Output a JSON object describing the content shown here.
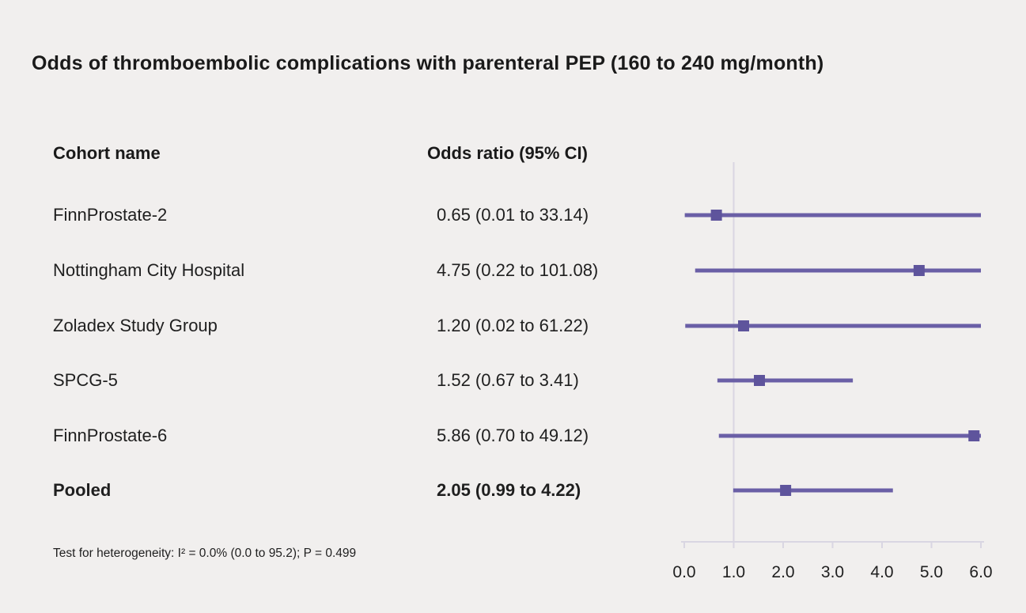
{
  "title": "Odds of thromboembolic complications with parenteral PEP (160 to 240 mg/month)",
  "columns": {
    "cohort": "Cohort name",
    "odds_ratio": "Odds ratio (95% CI)"
  },
  "footnote": "Test for heterogeneity: I² = 0.0% (0.0 to 95.2); P = 0.499",
  "colors": {
    "background": "#f1efee",
    "accent_line": "#6a5fa6",
    "accent_marker": "#5e549c",
    "axis": "#d9d6e2",
    "text": "#1f1f1f"
  },
  "chart_data": {
    "type": "forest",
    "title": "Odds of thromboembolic complications with parenteral PEP (160 to 240 mg/month)",
    "xlabel": "Odds ratio",
    "xlim": [
      0.0,
      6.0
    ],
    "refline": 1.0,
    "xticks": [
      {
        "value": 0.0,
        "label": "0.0"
      },
      {
        "value": 1.0,
        "label": "1.0"
      },
      {
        "value": 2.0,
        "label": "2.0"
      },
      {
        "value": 3.0,
        "label": "3.0"
      },
      {
        "value": 4.0,
        "label": "4.0"
      },
      {
        "value": 5.0,
        "label": "5.0"
      },
      {
        "value": 6.0,
        "label": "6.0"
      }
    ],
    "rows": [
      {
        "label": "FinnProstate-2",
        "or": 0.65,
        "low": 0.01,
        "high": 33.14,
        "text": "0.65 (0.01 to 33.14)",
        "bold": false
      },
      {
        "label": "Nottingham City Hospital",
        "or": 4.75,
        "low": 0.22,
        "high": 101.08,
        "text": "4.75 (0.22 to 101.08)",
        "bold": false
      },
      {
        "label": "Zoladex Study Group",
        "or": 1.2,
        "low": 0.02,
        "high": 61.22,
        "text": "1.20 (0.02 to 61.22)",
        "bold": false
      },
      {
        "label": "SPCG-5",
        "or": 1.52,
        "low": 0.67,
        "high": 3.41,
        "text": "1.52 (0.67 to 3.41)",
        "bold": false
      },
      {
        "label": "FinnProstate-6",
        "or": 5.86,
        "low": 0.7,
        "high": 49.12,
        "text": "5.86 (0.70 to 49.12)",
        "bold": false
      },
      {
        "label": "Pooled",
        "or": 2.05,
        "low": 0.99,
        "high": 4.22,
        "text": "2.05 (0.99 to 4.22)",
        "bold": true
      }
    ]
  }
}
